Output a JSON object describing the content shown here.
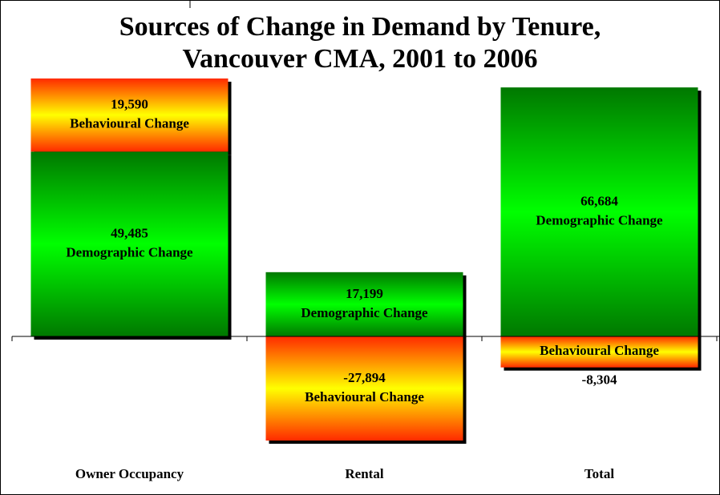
{
  "chart_data": {
    "type": "bar",
    "stacked": true,
    "title": [
      "Sources of Change in Demand by Tenure,",
      "Vancouver CMA, 2001 to 2006"
    ],
    "categories": [
      "Owner Occupancy",
      "Rental",
      "Total"
    ],
    "series": [
      {
        "name": "Demographic Change",
        "color": "#00ff00",
        "values": [
          49485,
          17199,
          66684
        ],
        "value_labels": [
          "49,485",
          "17,199",
          "66,684"
        ]
      },
      {
        "name": "Behavioural Change",
        "color": "#ffff00",
        "values": [
          19590,
          -27894,
          -8304
        ],
        "value_labels": [
          "19,590",
          "-27,894",
          "-8,304"
        ]
      }
    ]
  }
}
